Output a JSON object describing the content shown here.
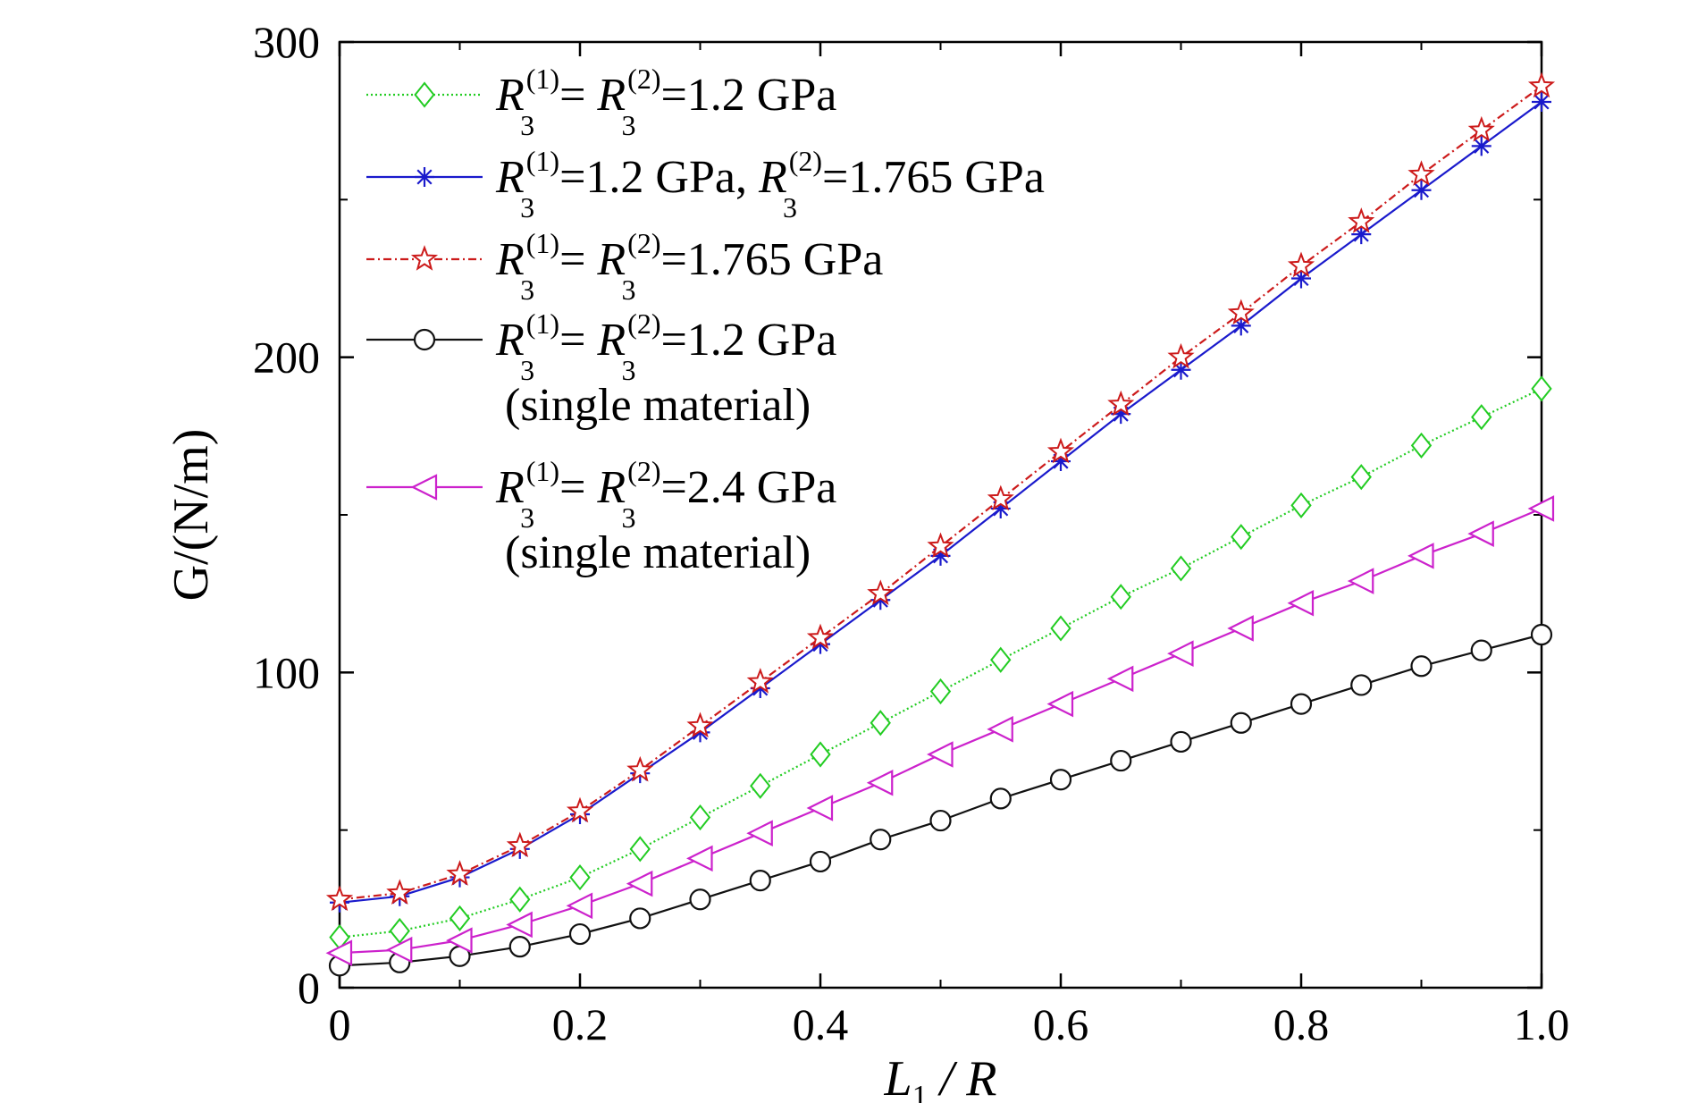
{
  "chart_data": {
    "type": "line",
    "xlabel": {
      "main": "L",
      "sub": "1",
      "rest": " / R"
    },
    "ylabel": "G/(N/m)",
    "xlim": [
      0,
      1.0
    ],
    "ylim": [
      0,
      300
    ],
    "xticks": [
      0,
      0.2,
      0.4,
      0.6,
      0.8,
      1.0
    ],
    "xtick_labels": [
      "0",
      "0.2",
      "0.4",
      "0.6",
      "0.8",
      "1.0"
    ],
    "yticks": [
      0,
      100,
      200,
      300
    ],
    "ytick_labels": [
      "0",
      "100",
      "200",
      "300"
    ],
    "x": [
      0,
      0.05,
      0.1,
      0.15,
      0.2,
      0.25,
      0.3,
      0.35,
      0.4,
      0.45,
      0.5,
      0.55,
      0.6,
      0.65,
      0.7,
      0.75,
      0.8,
      0.85,
      0.9,
      0.95,
      1.0
    ],
    "grid": false,
    "legend_position": "top-left",
    "series": [
      {
        "key": "s1",
        "color": "#22cc22",
        "line_style": "dotted",
        "marker": "diamond",
        "legend": {
          "prefix": "",
          "lhs": "R",
          "sub": "3",
          "sup1": "(1)",
          "eq1": "= ",
          "rhs": "R",
          "sup2": "(2)",
          "value": "=1.2 GPa"
        },
        "note": "",
        "values": [
          16,
          18,
          22,
          28,
          35,
          44,
          54,
          64,
          74,
          84,
          94,
          104,
          114,
          124,
          133,
          143,
          153,
          162,
          172,
          181,
          190
        ]
      },
      {
        "key": "s2",
        "color": "#1a1acc",
        "line_style": "solid",
        "marker": "asterisk",
        "legend": {
          "prefix": "",
          "lhs": "R",
          "sub": "3",
          "sup1": "(1)",
          "eq1": "=1.2 GPa, ",
          "rhs": "R",
          "sup2": "(2)",
          "value": "=1.765 GPa"
        },
        "note": "",
        "values": [
          27,
          29,
          35,
          44,
          55,
          68,
          81,
          95,
          109,
          123,
          137,
          152,
          167,
          182,
          196,
          210,
          225,
          239,
          253,
          267,
          281
        ]
      },
      {
        "key": "s3",
        "color": "#cc1a1a",
        "line_style": "dashdot",
        "marker": "star",
        "legend": {
          "prefix": "",
          "lhs": "R",
          "sub": "3",
          "sup1": "(1)",
          "eq1": "= ",
          "rhs": "R",
          "sup2": "(2)",
          "value": "=1.765 GPa"
        },
        "note": "",
        "values": [
          28,
          30,
          36,
          45,
          56,
          69,
          83,
          97,
          111,
          125,
          140,
          155,
          170,
          185,
          200,
          214,
          229,
          243,
          258,
          272,
          286
        ]
      },
      {
        "key": "s4",
        "color": "#111111",
        "line_style": "solid",
        "marker": "circle",
        "legend": {
          "prefix": "",
          "lhs": "R",
          "sub": "3",
          "sup1": "(1)",
          "eq1": "= ",
          "rhs": "R",
          "sup2": "(2)",
          "value": "=1.2 GPa"
        },
        "note": "(single material)",
        "values": [
          7,
          8,
          10,
          13,
          17,
          22,
          28,
          34,
          40,
          47,
          53,
          60,
          66,
          72,
          78,
          84,
          90,
          96,
          102,
          107,
          112
        ]
      },
      {
        "key": "s5",
        "color": "#cc22cc",
        "line_style": "solid",
        "marker": "triangle-left",
        "legend": {
          "prefix": "",
          "lhs": "R",
          "sub": "3",
          "sup1": "(1)",
          "eq1": "= ",
          "rhs": "R",
          "sup2": "(2)",
          "value": "=2.4 GPa"
        },
        "note": "(single material)",
        "values": [
          11,
          12,
          15,
          20,
          26,
          33,
          41,
          49,
          57,
          65,
          74,
          82,
          90,
          98,
          106,
          114,
          122,
          129,
          137,
          144,
          152
        ]
      }
    ]
  }
}
